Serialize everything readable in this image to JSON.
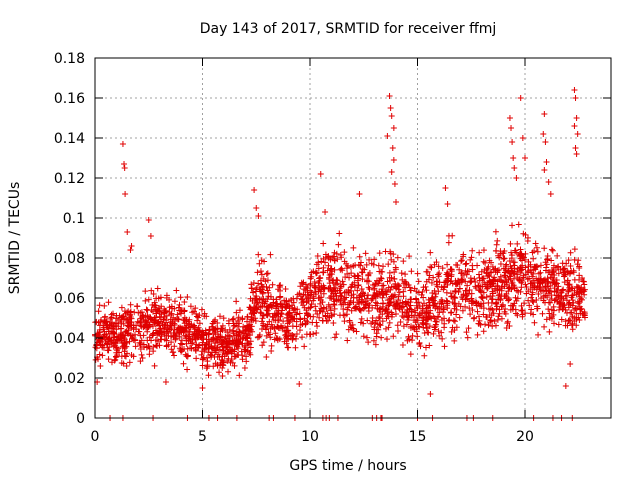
{
  "chart_data": {
    "type": "scatter",
    "title": "Day 143 of 2017, SRMTID for receiver ffmj",
    "xlabel": "GPS time / hours",
    "ylabel": "SRMTID / TECUs",
    "xlim": [
      0,
      24
    ],
    "ylim": [
      0,
      0.18
    ],
    "grid": true,
    "marker": "+",
    "color": "#e00000",
    "xticks": [
      0,
      5,
      10,
      15,
      20
    ],
    "xtick_labels": [
      "0",
      "5",
      "10",
      "15",
      "20"
    ],
    "yticks": [
      0,
      0.02,
      0.04,
      0.06,
      0.08,
      0.1,
      0.12,
      0.14,
      0.16,
      0.18
    ],
    "ytick_labels": [
      "0",
      "0.02",
      "0.04",
      "0.06",
      "0.08",
      "0.1",
      "0.12",
      "0.14",
      "0.16",
      "0.18"
    ],
    "series": [
      {
        "name": "SRMTID",
        "x_range": [
          0,
          22.8
        ],
        "band_profile": {
          "x": [
            0,
            1,
            2,
            3,
            4,
            5,
            6,
            7,
            7.5,
            8,
            9,
            10,
            11,
            12,
            13,
            14,
            15,
            16,
            17,
            18,
            19,
            20,
            21,
            22,
            22.8
          ],
          "center": [
            0.042,
            0.04,
            0.045,
            0.048,
            0.044,
            0.04,
            0.036,
            0.04,
            0.06,
            0.055,
            0.05,
            0.058,
            0.065,
            0.062,
            0.06,
            0.062,
            0.052,
            0.058,
            0.065,
            0.062,
            0.068,
            0.072,
            0.066,
            0.064,
            0.06
          ],
          "spread": [
            0.012,
            0.014,
            0.014,
            0.015,
            0.014,
            0.013,
            0.012,
            0.014,
            0.02,
            0.018,
            0.016,
            0.018,
            0.02,
            0.018,
            0.02,
            0.02,
            0.016,
            0.02,
            0.02,
            0.018,
            0.02,
            0.022,
            0.02,
            0.02,
            0.016
          ]
        },
        "points": [
          [
            1.3,
            0.137
          ],
          [
            1.35,
            0.127
          ],
          [
            1.38,
            0.125
          ],
          [
            1.4,
            0.112
          ],
          [
            1.5,
            0.093
          ],
          [
            1.7,
            0.086
          ],
          [
            1.65,
            0.084
          ],
          [
            2.5,
            0.099
          ],
          [
            2.6,
            0.091
          ],
          [
            7.4,
            0.114
          ],
          [
            7.5,
            0.105
          ],
          [
            7.6,
            0.101
          ],
          [
            10.5,
            0.122
          ],
          [
            10.7,
            0.103
          ],
          [
            12.3,
            0.112
          ],
          [
            13.7,
            0.161
          ],
          [
            13.75,
            0.155
          ],
          [
            13.8,
            0.151
          ],
          [
            13.9,
            0.145
          ],
          [
            13.6,
            0.141
          ],
          [
            13.85,
            0.135
          ],
          [
            13.9,
            0.129
          ],
          [
            13.8,
            0.123
          ],
          [
            13.95,
            0.117
          ],
          [
            14.0,
            0.108
          ],
          [
            16.3,
            0.115
          ],
          [
            16.4,
            0.107
          ],
          [
            19.3,
            0.15
          ],
          [
            19.35,
            0.145
          ],
          [
            19.4,
            0.138
          ],
          [
            19.45,
            0.13
          ],
          [
            19.5,
            0.125
          ],
          [
            19.6,
            0.12
          ],
          [
            19.8,
            0.16
          ],
          [
            19.9,
            0.14
          ],
          [
            20.0,
            0.13
          ],
          [
            20.9,
            0.152
          ],
          [
            20.85,
            0.142
          ],
          [
            20.95,
            0.138
          ],
          [
            21.0,
            0.128
          ],
          [
            20.9,
            0.124
          ],
          [
            21.1,
            0.118
          ],
          [
            21.2,
            0.112
          ],
          [
            22.3,
            0.164
          ],
          [
            22.35,
            0.16
          ],
          [
            22.4,
            0.15
          ],
          [
            22.3,
            0.146
          ],
          [
            22.45,
            0.142
          ],
          [
            22.35,
            0.135
          ],
          [
            22.4,
            0.132
          ],
          [
            15.6,
            0.012
          ],
          [
            21.9,
            0.016
          ],
          [
            5.0,
            0.015
          ],
          [
            3.3,
            0.018
          ],
          [
            9.5,
            0.017
          ],
          [
            22.1,
            0.027
          ],
          [
            0.1,
            0.018
          ]
        ],
        "zero_markers_x": [
          0.7,
          1.3,
          2.7,
          4.3,
          5.3,
          5.7,
          6.6,
          8.1,
          8.3,
          9.3,
          10.6,
          10.75,
          10.9,
          11.3,
          12.9,
          13.1,
          13.3,
          13.35,
          15.0,
          15.7,
          17.3,
          17.6,
          18.5,
          20.4,
          21.3,
          21.7,
          22.2
        ]
      }
    ]
  }
}
